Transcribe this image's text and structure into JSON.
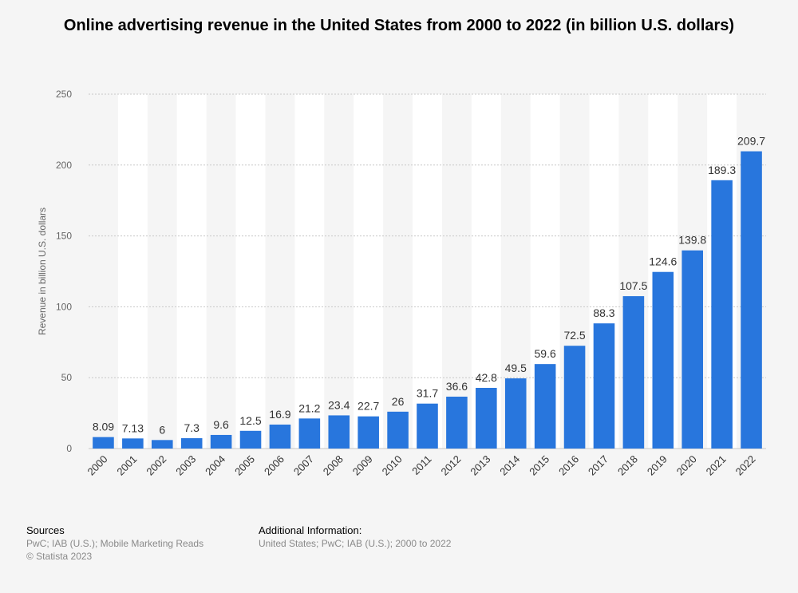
{
  "chart_data": {
    "type": "bar",
    "title": "Online advertising revenue in the United States from 2000 to 2022 (in billion U.S. dollars)",
    "xlabel": "",
    "ylabel": "Revenue in billion U.S. dollars",
    "ylim": [
      0,
      250
    ],
    "yticks": [
      "0",
      "50",
      "100",
      "150",
      "200",
      "250"
    ],
    "categories": [
      "2000",
      "2001",
      "2002",
      "2003",
      "2004",
      "2005",
      "2006",
      "2007",
      "2008",
      "2009",
      "2010",
      "2011",
      "2012",
      "2013",
      "2014",
      "2015",
      "2016",
      "2017",
      "2018",
      "2019",
      "2020",
      "2021",
      "2022"
    ],
    "values": [
      8.09,
      7.13,
      6,
      7.3,
      9.6,
      12.5,
      16.9,
      21.2,
      23.4,
      22.7,
      26,
      31.7,
      36.6,
      42.8,
      49.5,
      59.6,
      72.5,
      88.3,
      107.5,
      124.6,
      139.8,
      189.3,
      209.7
    ],
    "value_labels": [
      "8.09",
      "7.13",
      "6",
      "7.3",
      "9.6",
      "12.5",
      "16.9",
      "21.2",
      "23.4",
      "22.7",
      "26",
      "31.7",
      "36.6",
      "42.8",
      "49.5",
      "59.6",
      "72.5",
      "88.3",
      "107.5",
      "124.6",
      "139.8",
      "189.3",
      "209.7"
    ],
    "bar_color": "#2876dd",
    "grid": true,
    "legend": "none"
  },
  "footer": {
    "sources_title": "Sources",
    "sources_line1": "PwC; IAB (U.S.); Mobile Marketing Reads",
    "sources_line2": "© Statista 2023",
    "additional_title": "Additional Information:",
    "additional_line1": "United States; PwC; IAB (U.S.); 2000 to 2022"
  }
}
